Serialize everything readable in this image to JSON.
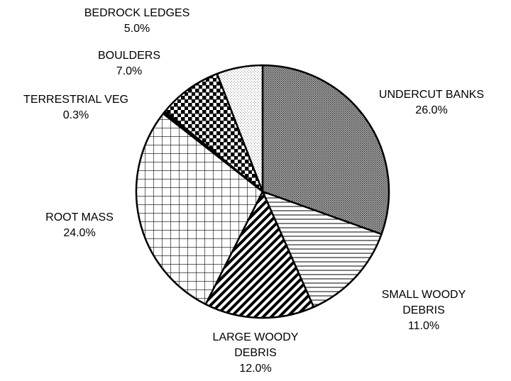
{
  "chart_data": {
    "type": "pie",
    "categories": [
      "UNDERCUT BANKS",
      "SMALL WOODY DEBRIS",
      "LARGE WOODY DEBRIS",
      "ROOT MASS",
      "TERRESTRIAL VEG",
      "BOULDERS",
      "BEDROCK LEDGES"
    ],
    "values": [
      26,
      11,
      12,
      24,
      0.3,
      7,
      5
    ],
    "value_labels": [
      "26.0%",
      "11.0%",
      "12.0%",
      "24.0%",
      "0.3%",
      "7.0%",
      "5.0%"
    ]
  }
}
